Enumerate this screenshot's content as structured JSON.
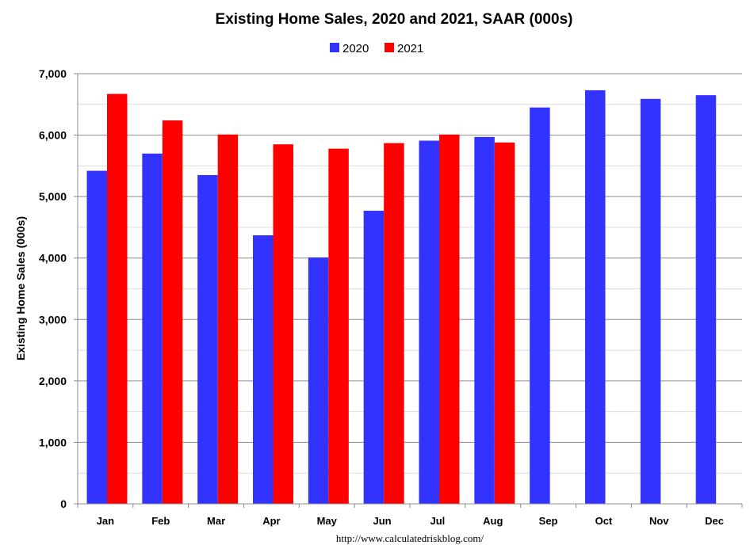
{
  "chart_data": {
    "type": "bar",
    "title": "Existing Home Sales,  2020 and 2021, SAAR (000s)",
    "ylabel": "Existing Home Sales (000s)",
    "xlabel": "",
    "footer": "http://www.calculatedriskblog.com/",
    "ylim": [
      0,
      7000
    ],
    "yticks": [
      0,
      1000,
      2000,
      3000,
      4000,
      5000,
      6000,
      7000
    ],
    "ytick_labels": [
      "0",
      "1,000",
      "2,000",
      "3,000",
      "4,000",
      "5,000",
      "6,000",
      "7,000"
    ],
    "categories": [
      "Jan",
      "Feb",
      "Mar",
      "Apr",
      "May",
      "Jun",
      "Jul",
      "Aug",
      "Sep",
      "Oct",
      "Nov",
      "Dec"
    ],
    "series": [
      {
        "name": "2020",
        "color": "#3333ff",
        "values": [
          5420,
          5700,
          5350,
          4370,
          4010,
          4770,
          5910,
          5970,
          6450,
          6730,
          6590,
          6650
        ]
      },
      {
        "name": "2021",
        "color": "#ff0000",
        "values": [
          6670,
          6240,
          6010,
          5850,
          5780,
          5870,
          6010,
          5880,
          null,
          null,
          null,
          null
        ]
      }
    ],
    "grid": true,
    "legend_position": "top-center"
  }
}
